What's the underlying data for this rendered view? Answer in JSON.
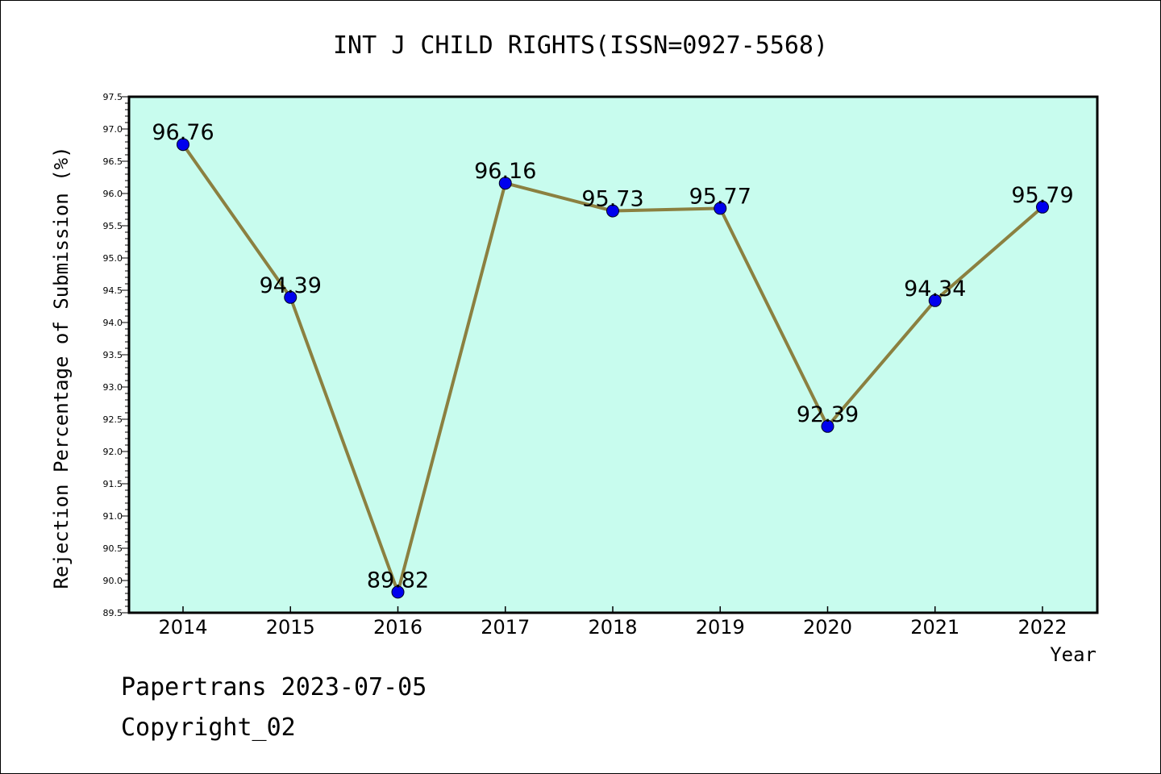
{
  "footer": {
    "line1": "Papertrans 2023-07-05",
    "line2": "Copyright_02"
  },
  "colors": {
    "plot_background": "#c8fcee",
    "line": "#8b8040",
    "marker": "#0000ee"
  },
  "chart_data": {
    "type": "line",
    "title": "INT J CHILD RIGHTS(ISSN=0927-5568)",
    "xlabel": "Year",
    "ylabel": "Rejection Percentage of Submission (%)",
    "categories": [
      "2014",
      "2015",
      "2016",
      "2017",
      "2018",
      "2019",
      "2020",
      "2021",
      "2022"
    ],
    "values": [
      96.76,
      94.39,
      89.82,
      96.16,
      95.73,
      95.77,
      92.39,
      94.34,
      95.79
    ],
    "data_labels": [
      "96.76",
      "94.39",
      "89.82",
      "96.16",
      "95.73",
      "95.77",
      "92.39",
      "94.34",
      "95.79"
    ],
    "ylim": [
      89.5,
      97.5
    ],
    "yticks": [
      "89.5",
      "90.0",
      "90.5",
      "91.0",
      "91.5",
      "92.0",
      "92.5",
      "93.0",
      "93.5",
      "94.0",
      "94.5",
      "95.0",
      "95.5",
      "96.0",
      "96.5",
      "97.0",
      "97.5"
    ],
    "grid": false,
    "legend": "none"
  }
}
